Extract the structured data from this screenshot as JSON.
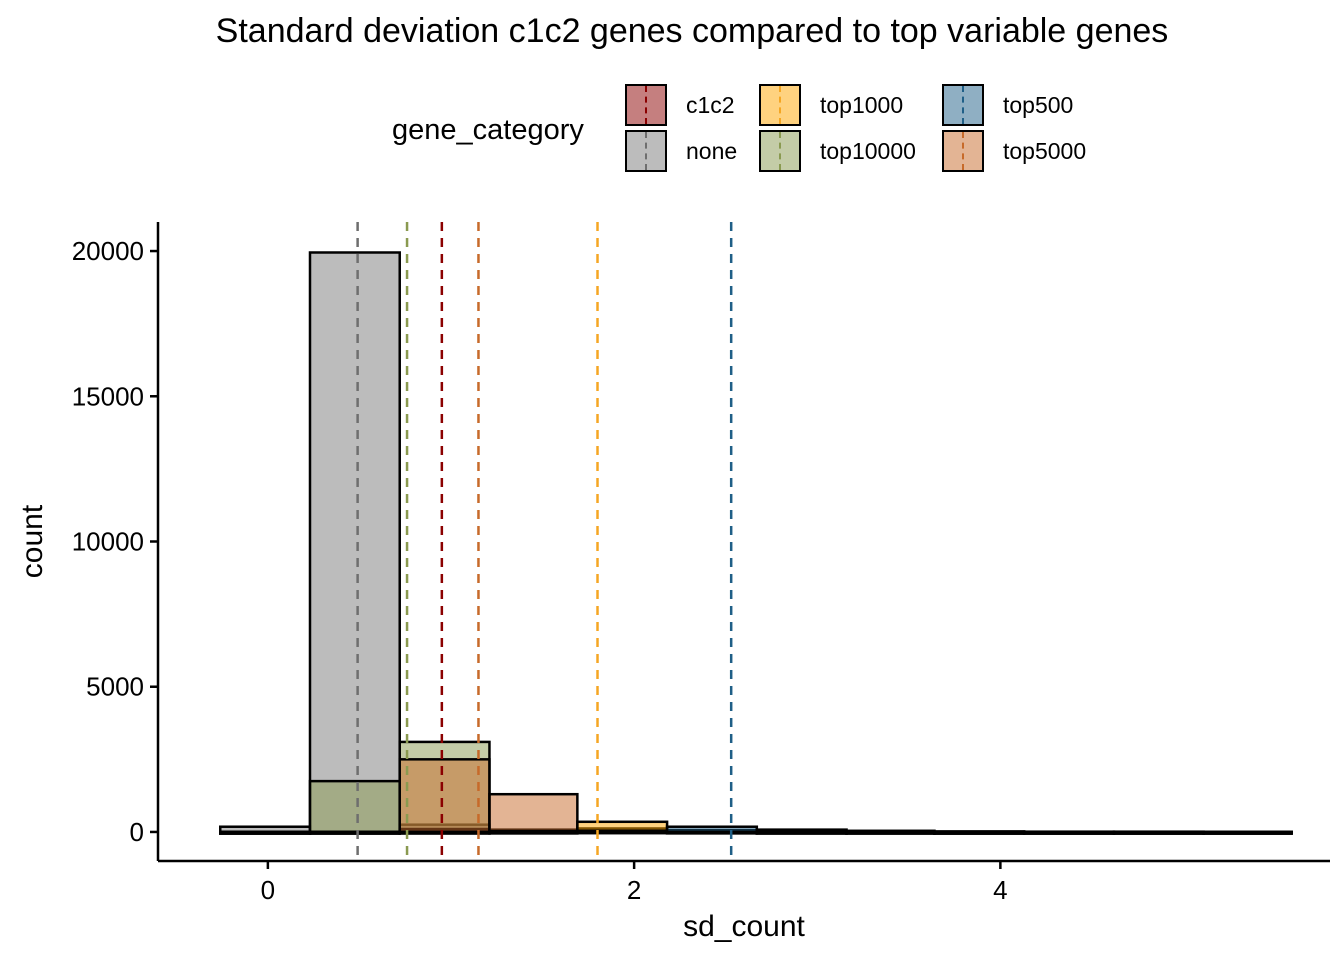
{
  "chart_data": {
    "type": "bar",
    "title": "Standard deviation c1c2 genes compared to top variable genes",
    "xlabel": "sd_count",
    "ylabel": "count",
    "xlim": [
      -0.6,
      5.8
    ],
    "ylim": [
      -1000,
      21000
    ],
    "x_ticks": [
      "0",
      "2",
      "4"
    ],
    "x_tick_values": [
      0,
      2,
      4
    ],
    "y_ticks": [
      "0",
      "5000",
      "10000",
      "15000",
      "20000"
    ],
    "y_tick_values": [
      0,
      5000,
      10000,
      15000,
      20000
    ],
    "bin_edges": [
      -0.26,
      0.23,
      0.72,
      1.21,
      1.69,
      2.18,
      2.67,
      3.16,
      3.64,
      4.13,
      4.62,
      5.11,
      5.59
    ],
    "legend": {
      "title": "gene_category",
      "position": "top",
      "entries": [
        "c1c2",
        "top1000",
        "top500",
        "none",
        "top10000",
        "top5000"
      ]
    },
    "series": [
      {
        "name": "none",
        "fill": "#7a7a7a",
        "line": "#6e6e6e",
        "values": [
          180,
          19950,
          250,
          60,
          20,
          5,
          0,
          0,
          0,
          0,
          0,
          0
        ],
        "mean_line": 0.49
      },
      {
        "name": "top10000",
        "fill": "#8a9a50",
        "line": "#8a9a50",
        "values": [
          0,
          1750,
          3100,
          80,
          20,
          5,
          0,
          0,
          0,
          0,
          0,
          0
        ],
        "mean_line": 0.76
      },
      {
        "name": "c1c2",
        "fill": "#8b0000",
        "line": "#8b0000",
        "values": [
          0,
          0,
          100,
          30,
          10,
          5,
          0,
          0,
          0,
          0,
          0,
          0
        ],
        "mean_line": 0.95
      },
      {
        "name": "top5000",
        "fill": "#c76a2a",
        "line": "#c76a2a",
        "values": [
          0,
          0,
          2500,
          1300,
          120,
          60,
          20,
          5,
          0,
          0,
          0,
          0
        ],
        "mean_line": 1.15
      },
      {
        "name": "top1000",
        "fill": "#ffa500",
        "line": "#f5a623",
        "values": [
          0,
          0,
          0,
          30,
          350,
          60,
          20,
          5,
          0,
          0,
          0,
          0
        ],
        "mean_line": 1.8
      },
      {
        "name": "top500",
        "fill": "#1f5f87",
        "line": "#1f5f87",
        "values": [
          0,
          0,
          0,
          0,
          40,
          180,
          80,
          40,
          20,
          10,
          10,
          5
        ],
        "mean_line": 2.53
      }
    ]
  }
}
